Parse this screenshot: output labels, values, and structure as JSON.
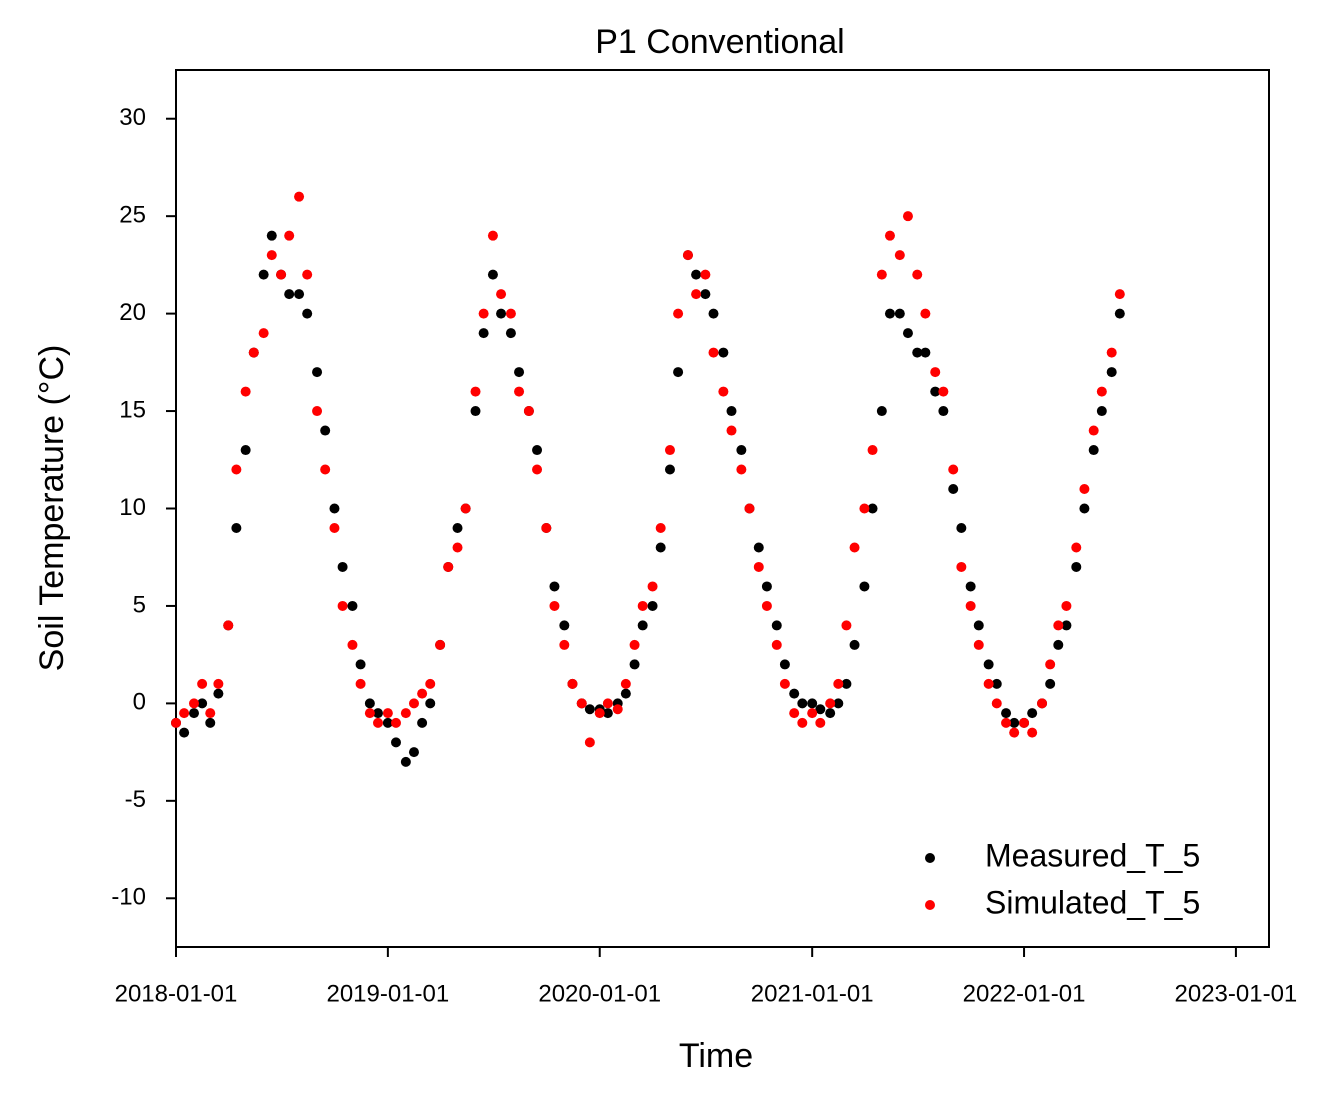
{
  "chart_data": {
    "type": "scatter",
    "title": "P1 Conventional",
    "x_label": "Time",
    "y_label": "Soil Temperature (°C)",
    "x": [
      "2018-01-01",
      "2018-01-15",
      "2018-02-01",
      "2018-02-15",
      "2018-03-01",
      "2018-03-15",
      "2018-04-01",
      "2018-04-15",
      "2018-05-01",
      "2018-05-15",
      "2018-06-01",
      "2018-06-15",
      "2018-07-01",
      "2018-07-15",
      "2018-08-01",
      "2018-08-15",
      "2018-09-01",
      "2018-09-15",
      "2018-10-01",
      "2018-10-15",
      "2018-11-01",
      "2018-11-15",
      "2018-12-01",
      "2018-12-15",
      "2019-01-01",
      "2019-01-15",
      "2019-02-01",
      "2019-02-15",
      "2019-03-01",
      "2019-03-15",
      "2019-04-01",
      "2019-04-15",
      "2019-05-01",
      "2019-05-15",
      "2019-06-01",
      "2019-06-15",
      "2019-07-01",
      "2019-07-15",
      "2019-08-01",
      "2019-08-15",
      "2019-09-01",
      "2019-09-15",
      "2019-10-01",
      "2019-10-15",
      "2019-11-01",
      "2019-11-15",
      "2019-12-01",
      "2019-12-15",
      "2020-01-01",
      "2020-01-15",
      "2020-02-01",
      "2020-02-15",
      "2020-03-01",
      "2020-03-15",
      "2020-04-01",
      "2020-04-15",
      "2020-05-01",
      "2020-05-15",
      "2020-06-01",
      "2020-06-15",
      "2020-07-01",
      "2020-07-15",
      "2020-08-01",
      "2020-08-15",
      "2020-09-01",
      "2020-09-15",
      "2020-10-01",
      "2020-10-15",
      "2020-11-01",
      "2020-11-15",
      "2020-12-01",
      "2020-12-15",
      "2021-01-01",
      "2021-01-15",
      "2021-02-01",
      "2021-02-15",
      "2021-03-01",
      "2021-03-15",
      "2021-04-01",
      "2021-04-15",
      "2021-05-01",
      "2021-05-15",
      "2021-06-01",
      "2021-06-15",
      "2021-07-01",
      "2021-07-15",
      "2021-08-01",
      "2021-08-15",
      "2021-09-01",
      "2021-09-15",
      "2021-10-01",
      "2021-10-15",
      "2021-11-01",
      "2021-11-15",
      "2021-12-01",
      "2021-12-15",
      "2022-01-01",
      "2022-01-15",
      "2022-02-01",
      "2022-02-15",
      "2022-03-01",
      "2022-03-15",
      "2022-04-01",
      "2022-04-15",
      "2022-05-01",
      "2022-05-15",
      "2022-06-01",
      "2022-06-15"
    ],
    "series": [
      {
        "name": "Measured_T_5",
        "color": "#000000",
        "values": [
          -1,
          -1.5,
          -0.5,
          0,
          -1,
          0.5,
          4,
          9,
          13,
          18,
          22,
          24,
          22,
          21,
          21,
          20,
          17,
          14,
          10,
          7,
          5,
          2,
          0,
          -0.5,
          -1,
          -2,
          -3,
          -2.5,
          -1,
          0,
          3,
          7,
          9,
          10,
          15,
          19,
          22,
          20,
          19,
          17,
          15,
          13,
          9,
          6,
          4,
          1,
          0,
          -0.3,
          -0.3,
          -0.5,
          0,
          0.5,
          2,
          4,
          5,
          8,
          12,
          17,
          23,
          22,
          21,
          20,
          18,
          15,
          13,
          10,
          8,
          6,
          4,
          2,
          0.5,
          0,
          0,
          -0.3,
          -0.5,
          0,
          1,
          3,
          6,
          10,
          15,
          20,
          20,
          19,
          18,
          18,
          16,
          15,
          11,
          9,
          6,
          4,
          2,
          1,
          -0.5,
          -1,
          -1,
          -0.5,
          0,
          1,
          3,
          4,
          7,
          10,
          13,
          15,
          17,
          20
        ]
      },
      {
        "name": "Simulated_T_5",
        "color": "#ff0000",
        "values": [
          -1,
          -0.5,
          0,
          1,
          -0.5,
          1,
          4,
          12,
          16,
          18,
          19,
          23,
          22,
          24,
          26,
          22,
          15,
          12,
          9,
          5,
          3,
          1,
          -0.5,
          -1,
          -0.5,
          -1,
          -0.5,
          0,
          0.5,
          1,
          3,
          7,
          8,
          10,
          16,
          20,
          24,
          21,
          20,
          16,
          15,
          12,
          9,
          5,
          3,
          1,
          0,
          -2,
          -0.5,
          0,
          -0.3,
          1,
          3,
          5,
          6,
          9,
          13,
          20,
          23,
          21,
          22,
          18,
          16,
          14,
          12,
          10,
          7,
          5,
          3,
          1,
          -0.5,
          -1,
          -0.5,
          -1,
          0,
          1,
          4,
          8,
          10,
          13,
          22,
          24,
          23,
          25,
          22,
          20,
          17,
          16,
          12,
          7,
          5,
          3,
          1,
          0,
          -1,
          -1.5,
          -1,
          -1.5,
          0,
          2,
          4,
          5,
          8,
          11,
          14,
          16,
          18,
          21
        ]
      }
    ],
    "xlim": [
      "2018-01-01",
      "2023-02-27"
    ],
    "xticks": [
      "2018-01-01",
      "2019-01-01",
      "2020-01-01",
      "2021-01-01",
      "2022-01-01",
      "2023-01-01"
    ],
    "ylim": [
      -12.5,
      32.5
    ],
    "yticks": [
      -10,
      -5,
      0,
      5,
      10,
      15,
      20,
      25,
      30
    ],
    "legend": "lower right"
  }
}
